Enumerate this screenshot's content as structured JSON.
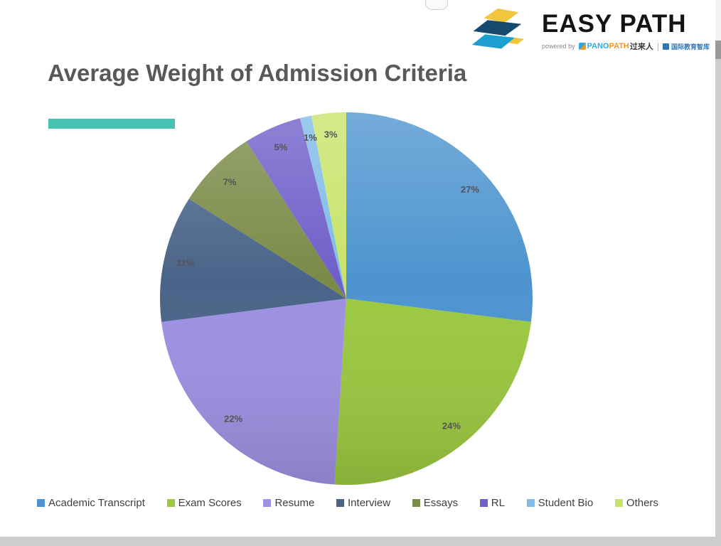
{
  "page": {
    "title": "Average Weight of Admission Criteria"
  },
  "logo": {
    "brand": "EASY PATH",
    "powered_by": "powered by",
    "pano": "PANO",
    "path": "PATH",
    "chinese": "过来人",
    "divider": "|",
    "tagline": "国际教育智库"
  },
  "theme": {
    "accent_teal": "#47C2B1",
    "title_gray": "#595959",
    "label_gray": "#545454"
  },
  "chart_data": {
    "type": "pie",
    "title": "Average Weight of Admission Criteria",
    "categories": [
      "Academic Transcript",
      "Exam Scores",
      "Resume",
      "Interview",
      "Essays",
      "RL",
      "Student Bio",
      "Others"
    ],
    "values": [
      27,
      24,
      22,
      11,
      7,
      5,
      1,
      3
    ],
    "labels": [
      "27%",
      "24%",
      "22%",
      "11%",
      "7%",
      "5%",
      "1%",
      "3%"
    ],
    "colors": [
      "#4D94CF",
      "#9BC840",
      "#9E90E2",
      "#4A6489",
      "#7B8A47",
      "#6F5FC9",
      "#7FBCE8",
      "#C9E36A"
    ],
    "start_angle": 0,
    "direction": "clockwise",
    "legend_position": "bottom",
    "data_labels": "percent"
  }
}
